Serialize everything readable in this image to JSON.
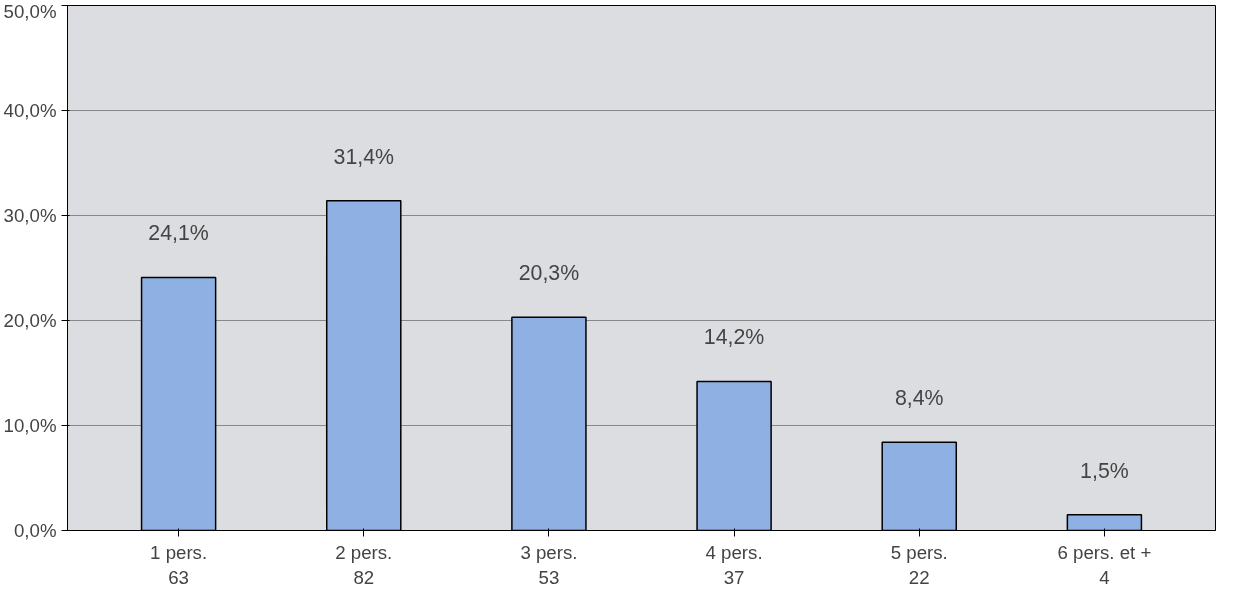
{
  "chart_data": {
    "type": "bar",
    "categories": [
      "1 pers.\n63",
      "2 pers.\n82",
      "3 pers.\n53",
      "4 pers.\n37",
      "5 pers.\n22",
      "6 pers. et +\n4"
    ],
    "values": [
      24.1,
      31.4,
      20.3,
      14.2,
      8.4,
      1.5
    ],
    "value_labels": [
      "24,1%",
      "31,4%",
      "20,3%",
      "14,2%",
      "8,4%",
      "1,5%"
    ],
    "color": "#8fb0e3",
    "ylim": [
      0,
      50
    ],
    "yticks": [
      {
        "value": 0,
        "label": "0,0%"
      },
      {
        "value": 10,
        "label": "10,0%"
      },
      {
        "value": 20,
        "label": "20,0%"
      },
      {
        "value": 30,
        "label": "30,0%"
      },
      {
        "value": 40,
        "label": "40,0%"
      },
      {
        "value": 50,
        "label": "50,0%"
      }
    ],
    "grid": "y"
  }
}
